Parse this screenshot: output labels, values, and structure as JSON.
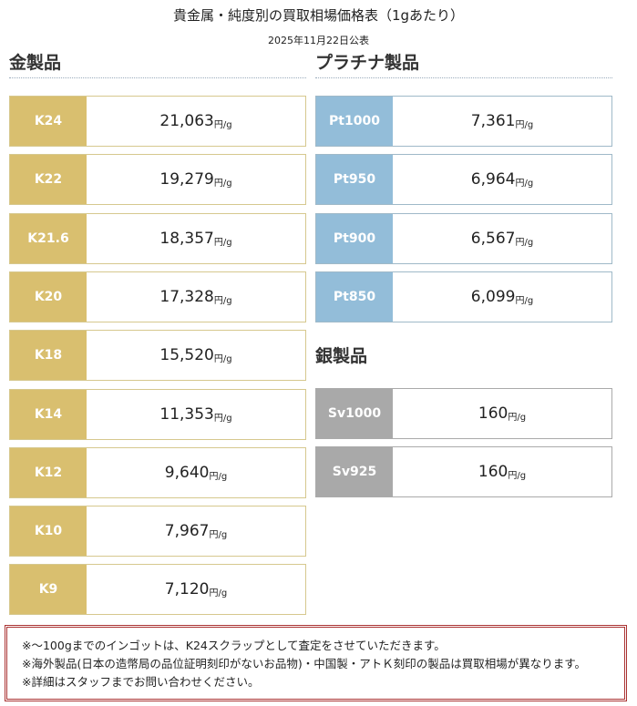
{
  "title": "貴金属・純度別の買取相場価格表（1gあたり）",
  "date": "2025年11月22日公表",
  "unit": "円/g",
  "gold": {
    "heading": "金製品",
    "items": [
      {
        "label": "K24",
        "price": "21,063"
      },
      {
        "label": "K22",
        "price": "19,279"
      },
      {
        "label": "K21.6",
        "price": "18,357"
      },
      {
        "label": "K20",
        "price": "17,328"
      },
      {
        "label": "K18",
        "price": "15,520"
      },
      {
        "label": "K14",
        "price": "11,353"
      },
      {
        "label": "K12",
        "price": "9,640"
      },
      {
        "label": "K10",
        "price": "7,967"
      },
      {
        "label": "K9",
        "price": "7,120"
      }
    ]
  },
  "platinum": {
    "heading": "プラチナ製品",
    "items": [
      {
        "label": "Pt1000",
        "price": "7,361"
      },
      {
        "label": "Pt950",
        "price": "6,964"
      },
      {
        "label": "Pt900",
        "price": "6,567"
      },
      {
        "label": "Pt850",
        "price": "6,099"
      }
    ]
  },
  "silver": {
    "heading": "銀製品",
    "items": [
      {
        "label": "Sv1000",
        "price": "160"
      },
      {
        "label": "Sv925",
        "price": "160"
      }
    ]
  },
  "notes": [
    "※～100gまでのインゴットは、K24スクラップとして査定をさせていただきます。",
    "※海外製品(日本の造幣局の品位証明刻印がないお品物)・中国製・アトＫ刻印の製品は買取相場が異なります。",
    "※詳細はスタッフまでお問い合わせください。"
  ],
  "colors": {
    "gold": "#d9bf6f",
    "platinum": "#93bdd9",
    "silver": "#a9a9a9",
    "note_border": "#aa3333"
  }
}
